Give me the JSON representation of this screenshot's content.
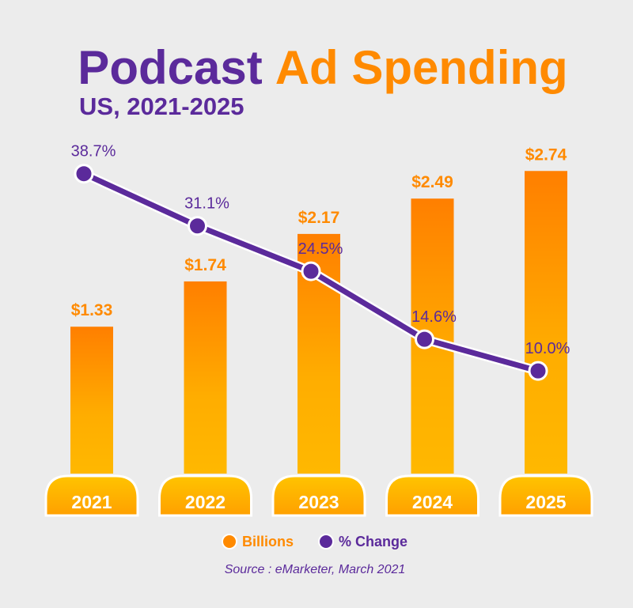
{
  "chart_data": {
    "type": "bar-line",
    "title": [
      "Podcast",
      "Ad Spending"
    ],
    "subtitle": "US, 2021-2025",
    "categories": [
      "2021",
      "2022",
      "2023",
      "2024",
      "2025"
    ],
    "series": [
      {
        "name": "Billions",
        "color": "#ff8a00",
        "values": [
          1.33,
          1.74,
          2.17,
          2.49,
          2.74
        ],
        "value_labels": [
          "$1.33",
          "$1.74",
          "$2.17",
          "$2.49",
          "$2.74"
        ]
      },
      {
        "name": "% Change",
        "color": "#5b2a9b",
        "axis": "y2",
        "values": [
          38.7,
          31.1,
          24.5,
          14.6,
          10.0
        ],
        "value_labels": [
          "38.7%",
          "31.1%",
          "24.5%",
          "14.6%",
          "10.0%"
        ]
      }
    ],
    "ylim": [
      0,
      3.2
    ],
    "y2lim": [
      0,
      50
    ],
    "source": "Source : eMarketer, March 2021"
  }
}
